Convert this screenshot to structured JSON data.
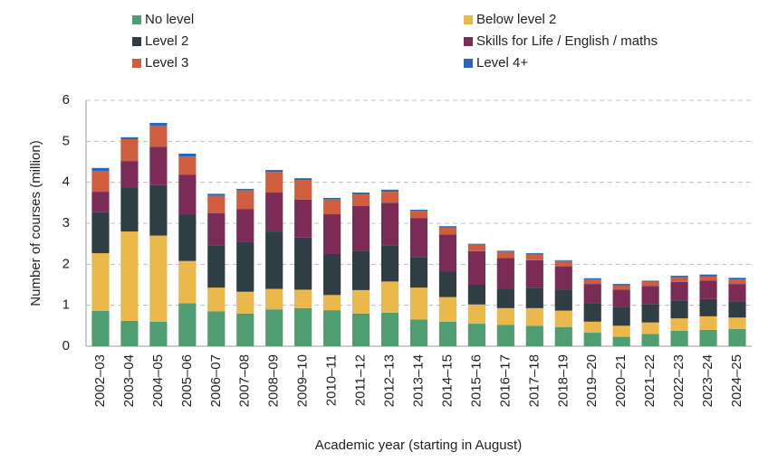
{
  "chart_data": {
    "type": "stacked_bar",
    "x_label": "Academic year (starting in August)",
    "y_label": "Number of courses (million)",
    "categories": [
      "2002–03",
      "2003–04",
      "2004–05",
      "2005–06",
      "2006–07",
      "2007–08",
      "2008–09",
      "2009–10",
      "2010–11",
      "2011–12",
      "2012–13",
      "2013–14",
      "2014–15",
      "2015–16",
      "2016–17",
      "2017–18",
      "2018–19",
      "2019–20",
      "2020–21",
      "2021–22",
      "2022–23",
      "2023–24",
      "2024–25"
    ],
    "series": [
      {
        "name": "No level",
        "color": "#4f9e72",
        "values": [
          0.86,
          0.62,
          0.6,
          1.05,
          0.85,
          0.8,
          0.9,
          0.93,
          0.88,
          0.8,
          0.82,
          0.65,
          0.6,
          0.55,
          0.52,
          0.5,
          0.47,
          0.33,
          0.23,
          0.3,
          0.38,
          0.4,
          0.42
        ]
      },
      {
        "name": "Below level 2",
        "color": "#ebb84a",
        "values": [
          1.41,
          2.18,
          2.1,
          1.03,
          0.58,
          0.53,
          0.5,
          0.45,
          0.37,
          0.57,
          0.76,
          0.78,
          0.6,
          0.47,
          0.41,
          0.43,
          0.4,
          0.27,
          0.27,
          0.28,
          0.3,
          0.33,
          0.28
        ]
      },
      {
        "name": "Level 2",
        "color": "#2f3e45",
        "values": [
          1.0,
          1.07,
          1.23,
          1.14,
          1.02,
          1.22,
          1.4,
          1.27,
          1.0,
          0.96,
          0.87,
          0.75,
          0.62,
          0.48,
          0.47,
          0.5,
          0.51,
          0.45,
          0.45,
          0.45,
          0.44,
          0.42,
          0.4
        ]
      },
      {
        "name": "Skills for Life / English / maths",
        "color": "#7a2b56",
        "values": [
          0.5,
          0.65,
          0.94,
          0.96,
          0.8,
          0.8,
          0.95,
          0.93,
          0.97,
          1.09,
          1.05,
          0.95,
          0.91,
          0.82,
          0.75,
          0.67,
          0.57,
          0.47,
          0.43,
          0.44,
          0.45,
          0.45,
          0.42
        ]
      },
      {
        "name": "Level 3",
        "color": "#d05d3d",
        "values": [
          0.51,
          0.53,
          0.51,
          0.45,
          0.42,
          0.45,
          0.5,
          0.47,
          0.36,
          0.28,
          0.27,
          0.17,
          0.17,
          0.16,
          0.15,
          0.14,
          0.13,
          0.11,
          0.1,
          0.1,
          0.11,
          0.1,
          0.11
        ]
      },
      {
        "name": "Level 4+",
        "color": "#2e67b1",
        "values": [
          0.07,
          0.05,
          0.07,
          0.07,
          0.05,
          0.04,
          0.05,
          0.05,
          0.04,
          0.05,
          0.05,
          0.03,
          0.03,
          0.02,
          0.03,
          0.03,
          0.02,
          0.03,
          0.04,
          0.03,
          0.04,
          0.05,
          0.04
        ]
      }
    ],
    "ylim": [
      0,
      6
    ],
    "yticks": [
      0,
      1,
      2,
      3,
      4,
      5,
      6
    ],
    "grid": true,
    "legend": "top"
  }
}
